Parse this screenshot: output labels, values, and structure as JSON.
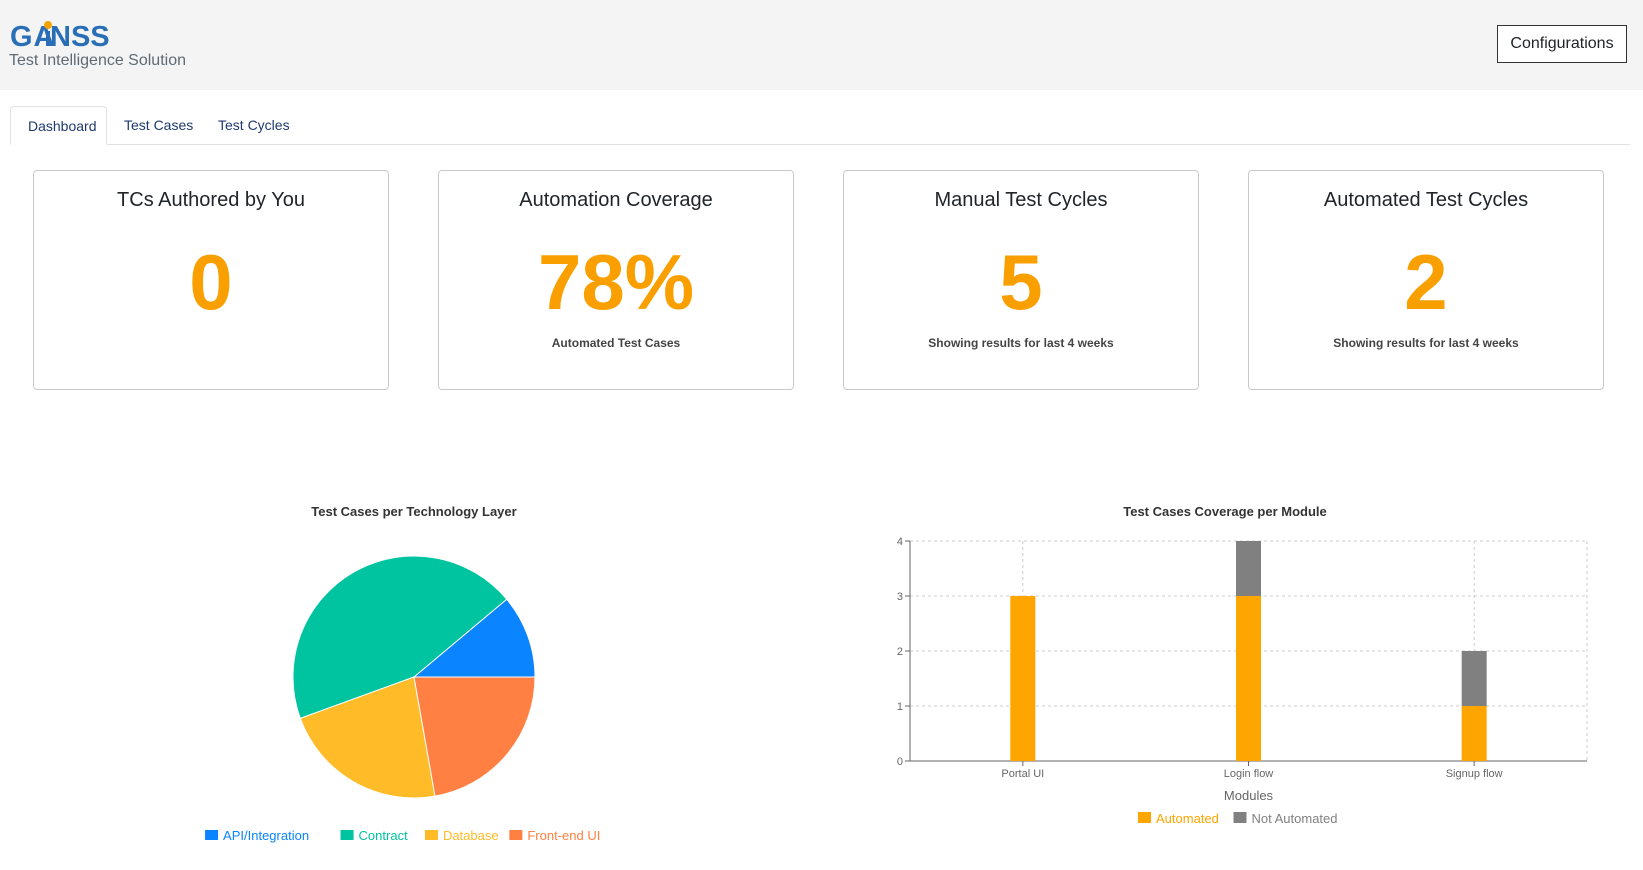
{
  "header": {
    "logo_text": "GAiNSS",
    "subtitle": "Test Intelligence Solution",
    "config_label": "Configurations"
  },
  "tabs": [
    {
      "label": "Dashboard",
      "active": true
    },
    {
      "label": "Test Cases",
      "active": false
    },
    {
      "label": "Test Cycles",
      "active": false
    }
  ],
  "cards": [
    {
      "title": "TCs Authored by You",
      "value": "0",
      "note": ""
    },
    {
      "title": "Automation Coverage",
      "value": "78%",
      "note": "Automated Test Cases"
    },
    {
      "title": "Manual Test Cycles",
      "value": "5",
      "note": "Showing results for last 4 weeks"
    },
    {
      "title": "Automated Test Cycles",
      "value": "2",
      "note": "Showing results for last 4 weeks"
    }
  ],
  "colors": {
    "accent": "#fa9f00",
    "api": "#0a84ff",
    "contract": "#00c49f",
    "database": "#ffbb28",
    "frontend": "#ff8042",
    "automated": "#ffa500",
    "not_automated": "#808080"
  },
  "chart_data": [
    {
      "type": "pie",
      "title": "Test Cases per Technology Layer",
      "series": [
        {
          "name": "API/Integration",
          "value": 1,
          "color": "#0a84ff"
        },
        {
          "name": "Contract",
          "value": 4,
          "color": "#00c49f"
        },
        {
          "name": "Database",
          "value": 2,
          "color": "#ffbb28"
        },
        {
          "name": "Front-end UI",
          "value": 2,
          "color": "#ff8042"
        }
      ],
      "legend": "bottom"
    },
    {
      "type": "bar",
      "stacked": true,
      "title": "Test Cases Coverage per Module",
      "xlabel": "Modules",
      "ylabel": "",
      "categories": [
        "Portal UI",
        "Login flow",
        "Signup flow"
      ],
      "series": [
        {
          "name": "Automated",
          "values": [
            3,
            3,
            1
          ],
          "color": "#ffa500"
        },
        {
          "name": "Not Automated",
          "values": [
            0,
            1,
            1
          ],
          "color": "#808080"
        }
      ],
      "ylim": [
        0,
        4
      ],
      "yticks": [
        "0",
        "1",
        "2",
        "3",
        "4"
      ],
      "grid": true,
      "legend": "bottom"
    }
  ]
}
